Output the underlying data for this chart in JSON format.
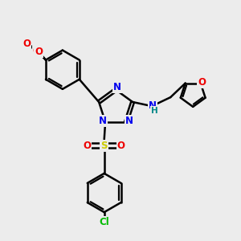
{
  "bg_color": "#ececec",
  "bond_color": "#000000",
  "bond_width": 1.8,
  "atom_colors": {
    "N": "#0000ee",
    "O": "#ee0000",
    "S": "#cccc00",
    "Cl": "#00bb00",
    "H": "#008888",
    "C": "#000000"
  },
  "font_size": 8.5,
  "small_font": 7.0
}
